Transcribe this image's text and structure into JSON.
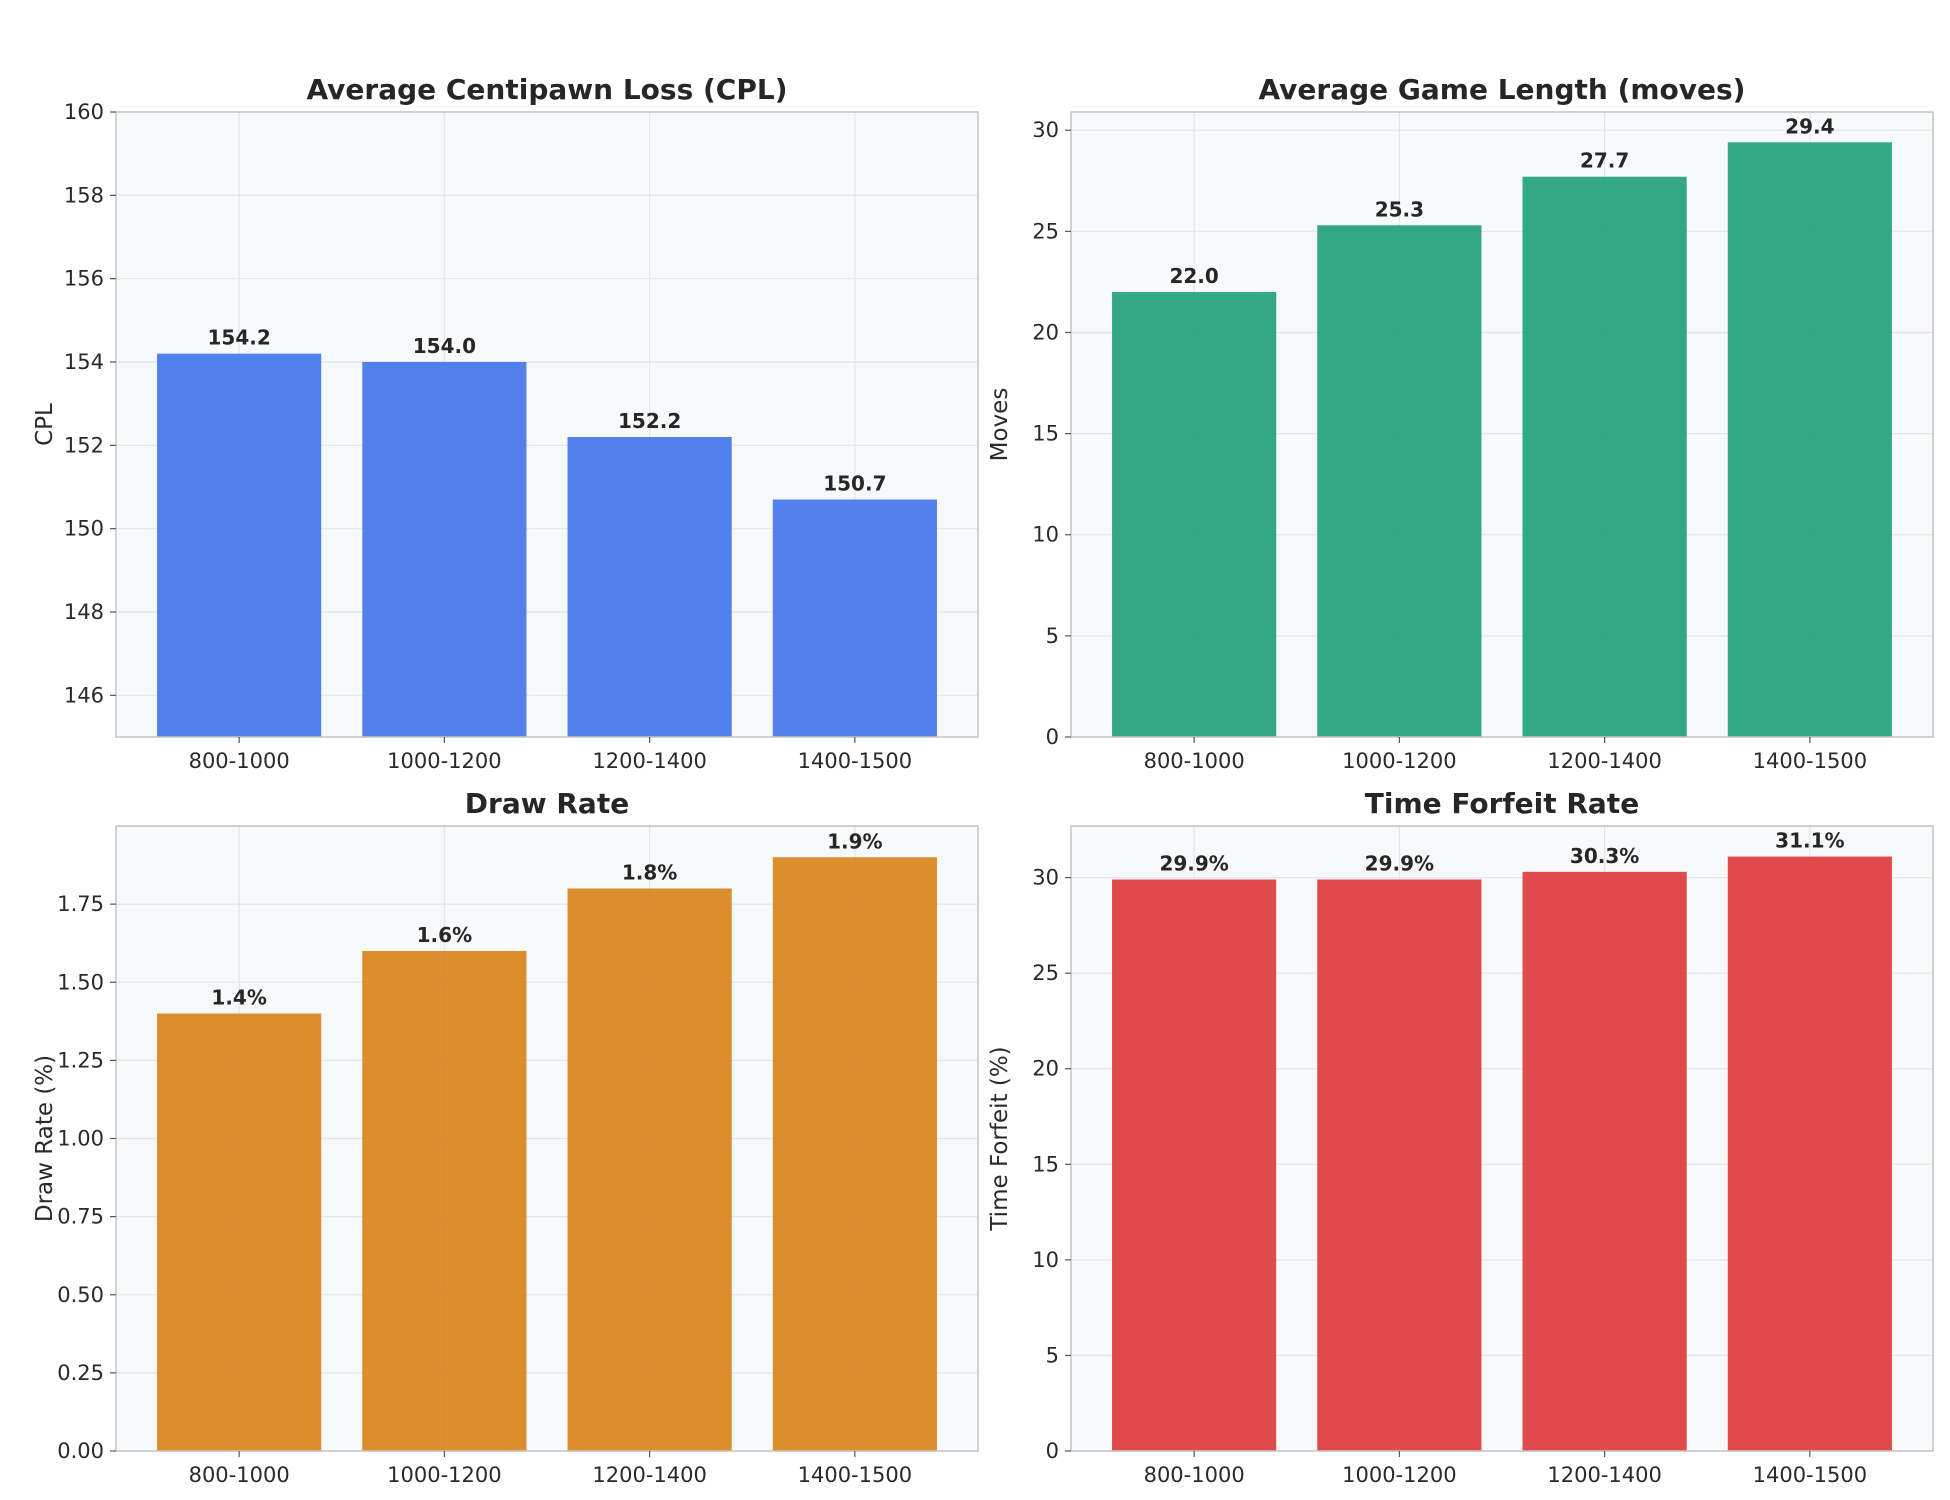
{
  "chart_data": [
    {
      "type": "bar",
      "title": "Average Centipawn Loss (CPL)",
      "xlabel": "",
      "ylabel": "CPL",
      "categories": [
        "800-1000",
        "1000-1200",
        "1200-1400",
        "1400-1500"
      ],
      "values": [
        154.2,
        154.0,
        152.2,
        150.7
      ],
      "data_labels": [
        "154.2",
        "154.0",
        "152.2",
        "150.7"
      ],
      "ylim": [
        145,
        160
      ],
      "yticks": [
        146,
        148,
        150,
        152,
        154,
        156,
        158,
        160
      ],
      "ytick_labels": [
        "146",
        "148",
        "150",
        "152",
        "154",
        "156",
        "158",
        "160"
      ],
      "color": "#4577ec",
      "grid": true
    },
    {
      "type": "bar",
      "title": "Average Game Length (moves)",
      "xlabel": "",
      "ylabel": "Moves",
      "categories": [
        "800-1000",
        "1000-1200",
        "1200-1400",
        "1400-1500"
      ],
      "values": [
        22.0,
        25.3,
        27.7,
        29.4
      ],
      "data_labels": [
        "22.0",
        "25.3",
        "27.7",
        "29.4"
      ],
      "ylim": [
        0,
        30.9
      ],
      "yticks": [
        0,
        5,
        10,
        15,
        20,
        25,
        30
      ],
      "ytick_labels": [
        "0",
        "5",
        "10",
        "15",
        "20",
        "25",
        "30"
      ],
      "color": "#22a27b",
      "grid": true
    },
    {
      "type": "bar",
      "title": "Draw Rate",
      "xlabel": "",
      "ylabel": "Draw Rate (%)",
      "categories": [
        "800-1000",
        "1000-1200",
        "1200-1400",
        "1400-1500"
      ],
      "values": [
        1.4,
        1.6,
        1.8,
        1.9
      ],
      "data_labels": [
        "1.4%",
        "1.6%",
        "1.8%",
        "1.9%"
      ],
      "ylim": [
        0,
        2.0
      ],
      "yticks": [
        0,
        0.25,
        0.5,
        0.75,
        1.0,
        1.25,
        1.5,
        1.75
      ],
      "ytick_labels": [
        "0.00",
        "0.25",
        "0.50",
        "0.75",
        "1.00",
        "1.25",
        "1.50",
        "1.75"
      ],
      "color": "#d9841e",
      "grid": true
    },
    {
      "type": "bar",
      "title": "Time Forfeit Rate",
      "xlabel": "",
      "ylabel": "Time Forfeit (%)",
      "categories": [
        "800-1000",
        "1000-1200",
        "1200-1400",
        "1400-1500"
      ],
      "values": [
        29.9,
        29.9,
        30.3,
        31.1
      ],
      "data_labels": [
        "29.9%",
        "29.9%",
        "30.3%",
        "31.1%"
      ],
      "ylim": [
        0,
        32.7
      ],
      "yticks": [
        0,
        5,
        10,
        15,
        20,
        25,
        30
      ],
      "ytick_labels": [
        "0",
        "5",
        "10",
        "15",
        "20",
        "25",
        "30"
      ],
      "color": "#df3c3c",
      "grid": true
    }
  ]
}
